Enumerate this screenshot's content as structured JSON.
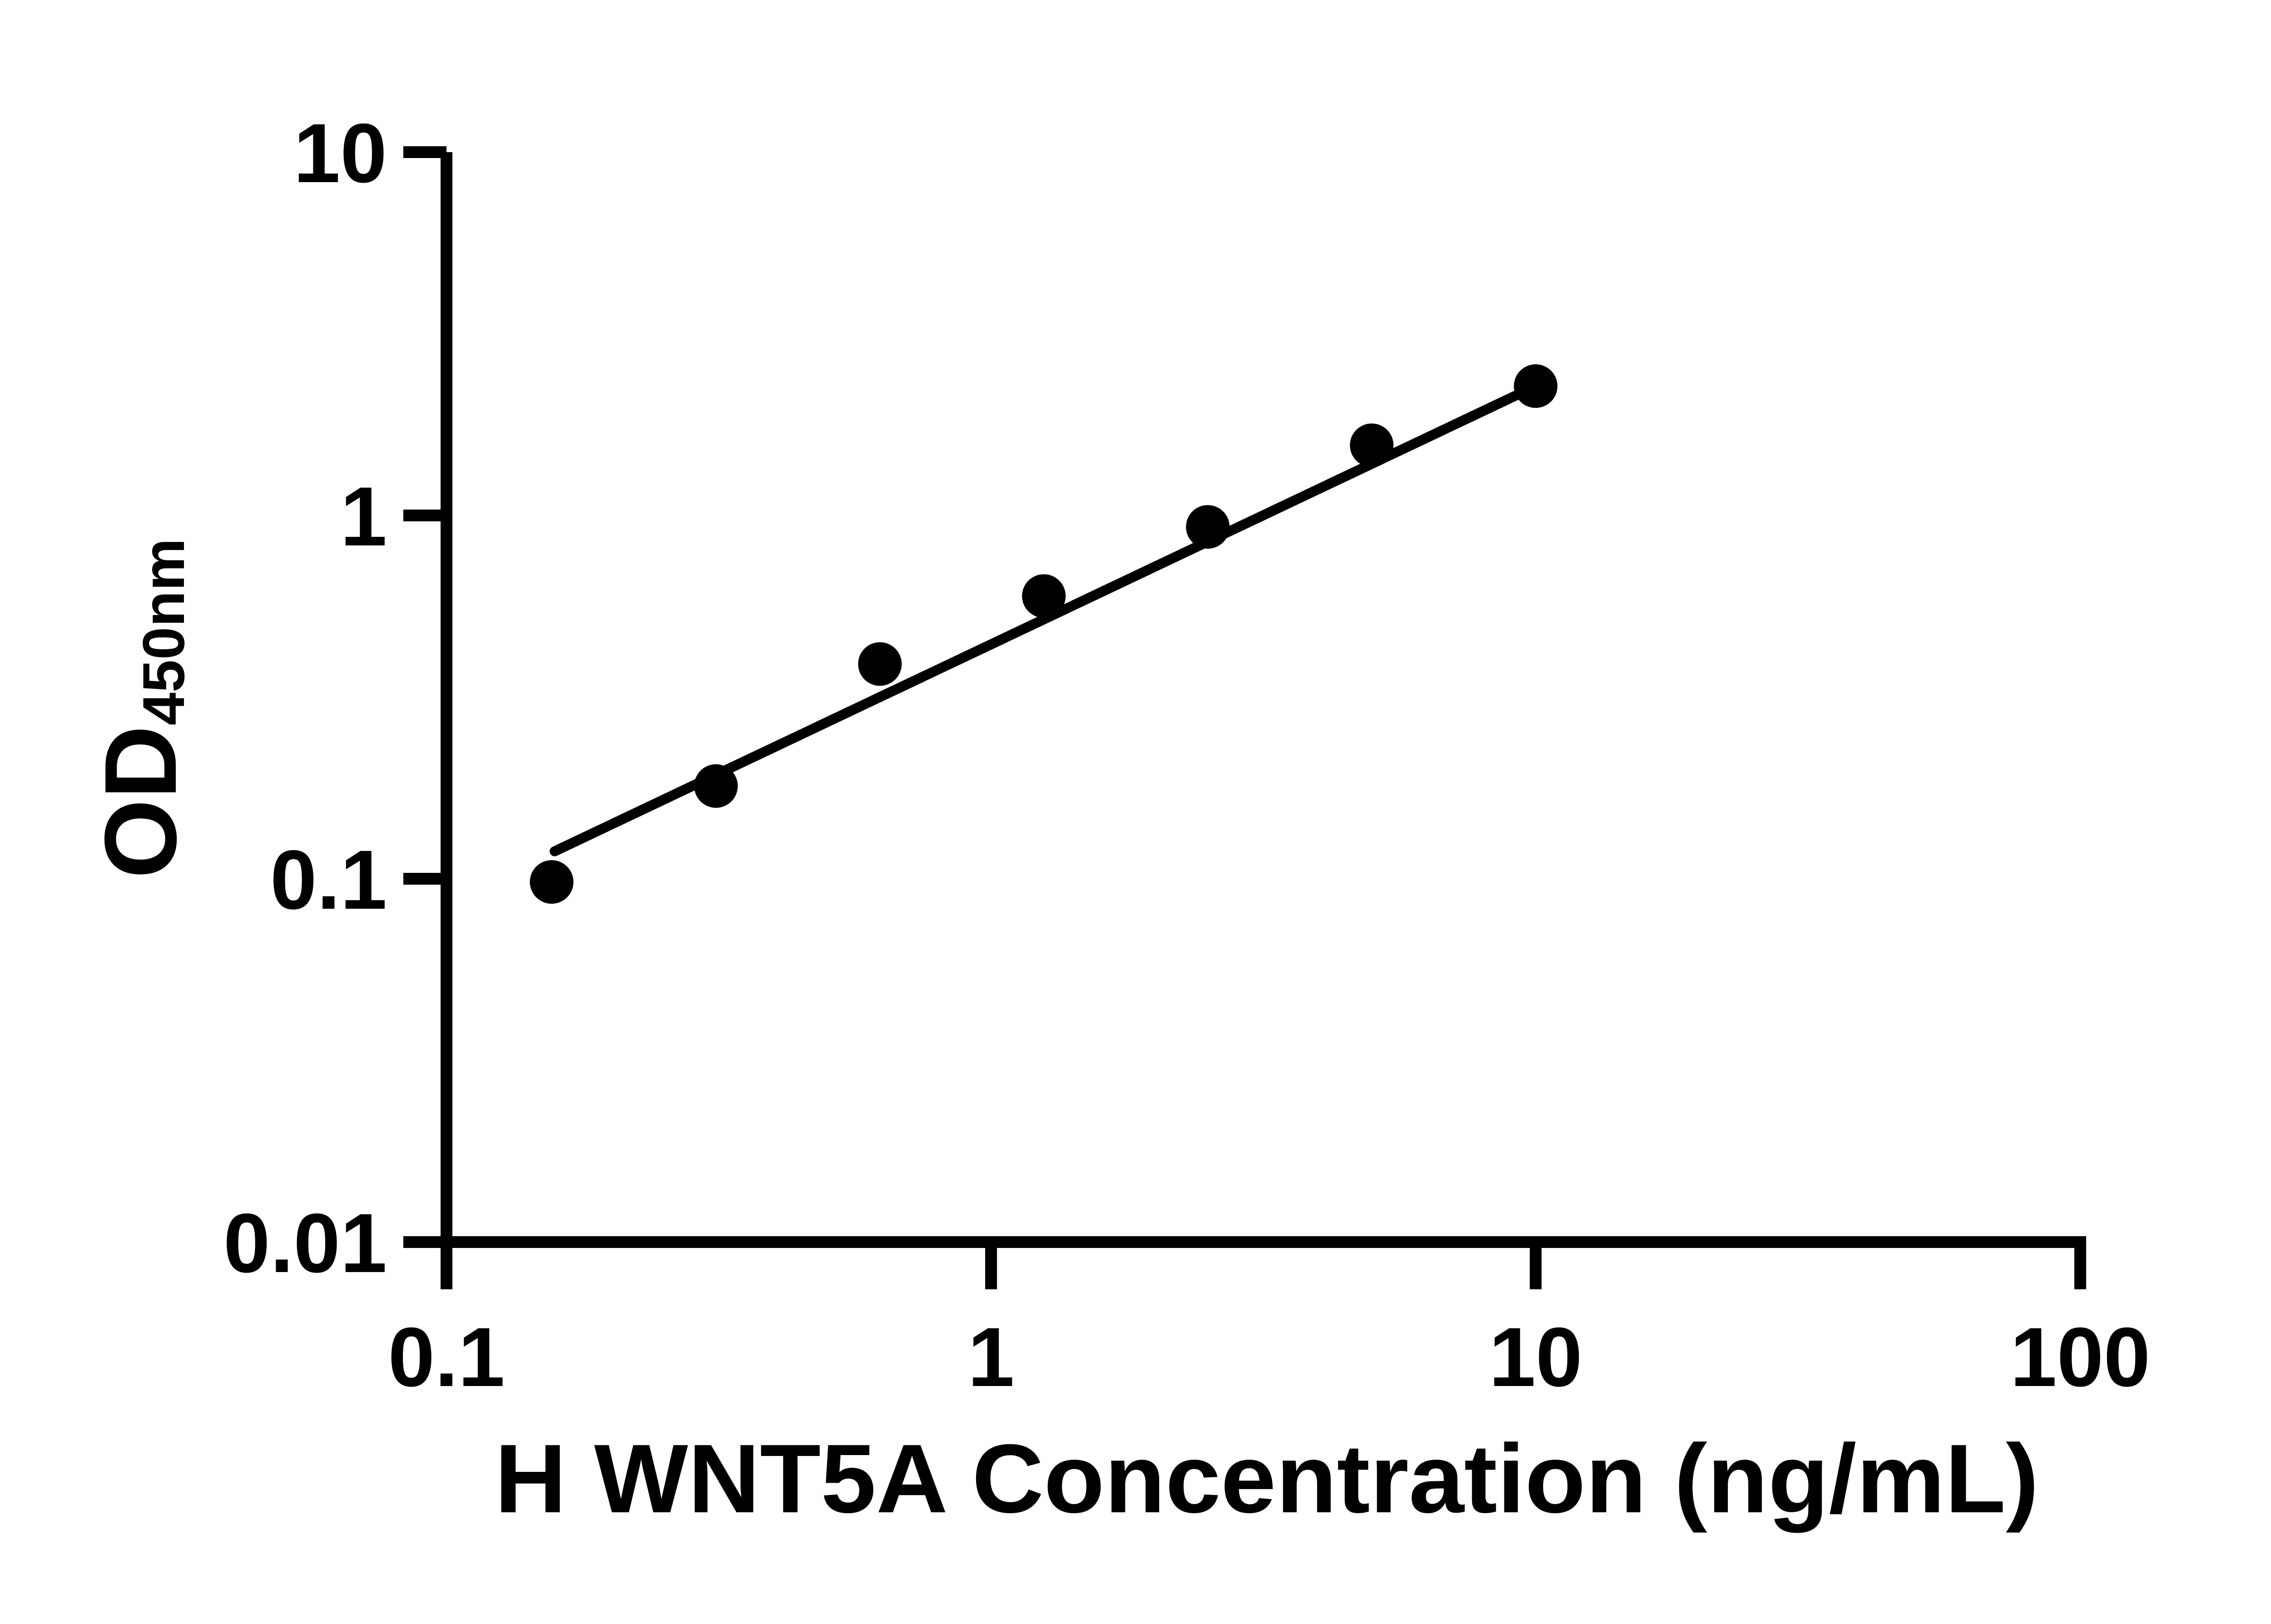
{
  "figure": {
    "background_color": "#ffffff",
    "ink_color": "#000000"
  },
  "y_axis": {
    "title_main": "OD",
    "title_sub": "450nm",
    "scale": "log",
    "min": 0.01,
    "max": 10,
    "ticks": [
      {
        "label": "10",
        "value": 10
      },
      {
        "label": "1",
        "value": 1
      },
      {
        "label": "0.1",
        "value": 0.1
      },
      {
        "label": "0.01",
        "value": 0.01
      }
    ]
  },
  "x_axis": {
    "title": "H WNT5A Concentration (ng/mL)",
    "scale": "log",
    "min": 0.1,
    "max": 100,
    "ticks": [
      {
        "label": "0.1",
        "value": 0.1
      },
      {
        "label": "1",
        "value": 1
      },
      {
        "label": "10",
        "value": 10
      },
      {
        "label": "100",
        "value": 100
      }
    ]
  },
  "chart_data": {
    "type": "scatter",
    "x": [
      0.156,
      0.3125,
      0.625,
      1.25,
      2.5,
      5,
      10
    ],
    "y": [
      0.098,
      0.18,
      0.39,
      0.6,
      0.93,
      1.56,
      2.27
    ],
    "title": "",
    "xlabel": "H WNT5A Concentration (ng/mL)",
    "ylabel": "OD450nm",
    "xlim": [
      0.1,
      100
    ],
    "ylim": [
      0.01,
      10
    ],
    "xscale": "log",
    "yscale": "log",
    "grid": false,
    "legend": null,
    "marker_color": "#000000",
    "trend_line": {
      "x_start": 0.158,
      "od_start": 0.119,
      "x_end": 10,
      "od_end": 2.27
    }
  }
}
